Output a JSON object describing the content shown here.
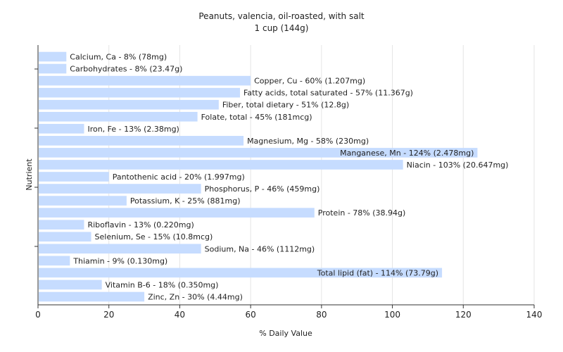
{
  "chart_data": {
    "type": "bar",
    "orientation": "horizontal",
    "title": "Peanuts, valencia, oil-roasted, with salt",
    "subtitle": "1 cup (144g)",
    "xlabel": "% Daily Value",
    "ylabel": "Nutrient",
    "xlim": [
      0,
      140
    ],
    "xticks": [
      0,
      20,
      40,
      60,
      80,
      100,
      120,
      140
    ],
    "grid": true,
    "bar_color": "#c6dcff",
    "categories": [
      "Calcium, Ca - 8% (78mg)",
      "Carbohydrates - 8% (23.47g)",
      "Copper, Cu - 60% (1.207mg)",
      "Fatty acids, total saturated - 57% (11.367g)",
      "Fiber, total dietary - 51% (12.8g)",
      "Folate, total - 45% (181mcg)",
      "Iron, Fe - 13% (2.38mg)",
      "Magnesium, Mg - 58% (230mg)",
      "Manganese, Mn - 124% (2.478mg)",
      "Niacin - 103% (20.647mg)",
      "Pantothenic acid - 20% (1.997mg)",
      "Phosphorus, P - 46% (459mg)",
      "Potassium, K - 25% (881mg)",
      "Protein - 78% (38.94g)",
      "Riboflavin - 13% (0.220mg)",
      "Selenium, Se - 15% (10.8mcg)",
      "Sodium, Na - 46% (1112mg)",
      "Thiamin - 9% (0.130mg)",
      "Total lipid (fat) - 114% (73.79g)",
      "Vitamin B-6 - 18% (0.350mg)",
      "Zinc, Zn - 30% (4.44mg)"
    ],
    "values": [
      8,
      8,
      60,
      57,
      51,
      45,
      13,
      58,
      124,
      103,
      20,
      46,
      25,
      78,
      13,
      15,
      46,
      9,
      114,
      18,
      30
    ]
  }
}
